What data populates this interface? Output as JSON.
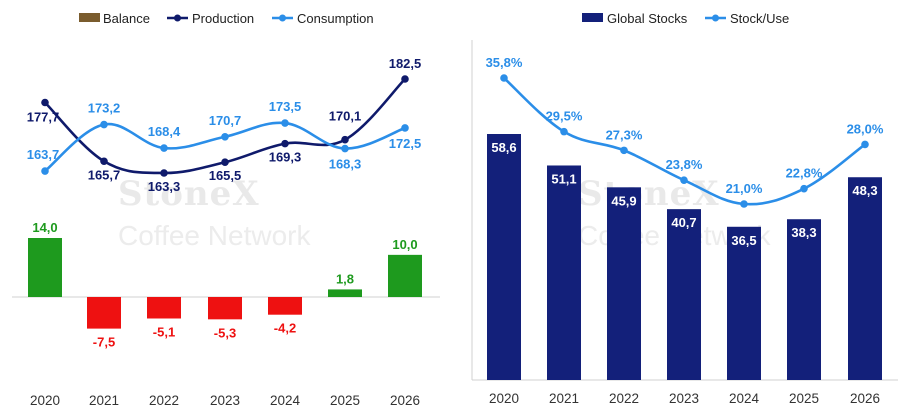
{
  "watermark": {
    "line1": "StoneX",
    "line2": "Coffee Network"
  },
  "chart_data": [
    {
      "type": "bar",
      "categories": [
        "2020",
        "2021",
        "2022",
        "2023",
        "2024",
        "2025",
        "2026"
      ],
      "legend": [
        "Balance",
        "Production",
        "Consumption"
      ],
      "legend_placement": "top-left",
      "grid": false,
      "series": [
        {
          "name": "Balance",
          "type": "bar",
          "values": [
            14.0,
            -7.5,
            -5.1,
            -5.3,
            -4.2,
            1.8,
            10.0
          ],
          "labels": [
            "14,0",
            "-7,5",
            "-5,1",
            "-5,3",
            "-4,2",
            "1,8",
            "10,0"
          ]
        },
        {
          "name": "Production",
          "type": "line",
          "values": [
            177.7,
            165.7,
            163.3,
            165.5,
            169.3,
            170.1,
            182.5
          ],
          "labels": [
            "177,7",
            "165,7",
            "163,3",
            "165,5",
            "169,3",
            "170,1",
            "182,5"
          ]
        },
        {
          "name": "Consumption",
          "type": "line",
          "values": [
            163.7,
            173.2,
            168.4,
            170.7,
            173.5,
            168.3,
            172.5
          ],
          "labels": [
            "163,7",
            "173,2",
            "168,4",
            "170,7",
            "173,5",
            "168,3",
            "172,5"
          ]
        }
      ],
      "colors": {
        "balance_bar": "#7a5c2e",
        "positive": "#1e9a1e",
        "negative": "#ee1111",
        "production": "#0f1a6b",
        "consumption": "#2b8ee8"
      }
    },
    {
      "type": "bar",
      "categories": [
        "2020",
        "2021",
        "2022",
        "2023",
        "2024",
        "2025",
        "2026"
      ],
      "legend": [
        "Global Stocks",
        "Stock/Use"
      ],
      "legend_placement": "top",
      "grid": false,
      "series": [
        {
          "name": "Global Stocks",
          "type": "bar",
          "values": [
            58.6,
            51.1,
            45.9,
            40.7,
            36.5,
            38.3,
            48.3
          ],
          "labels": [
            "58,6",
            "51,1",
            "45,9",
            "40,7",
            "36,5",
            "38,3",
            "48,3"
          ]
        },
        {
          "name": "Stock/Use",
          "type": "line",
          "unit": "%",
          "values": [
            35.8,
            29.5,
            27.3,
            23.8,
            21.0,
            22.8,
            28.0
          ],
          "labels": [
            "35,8%",
            "29,5%",
            "27,3%",
            "23,8%",
            "21,0%",
            "22,8%",
            "28,0%"
          ]
        }
      ],
      "colors": {
        "stocks": "#13207a",
        "stock_use": "#2b8ee8"
      }
    }
  ]
}
